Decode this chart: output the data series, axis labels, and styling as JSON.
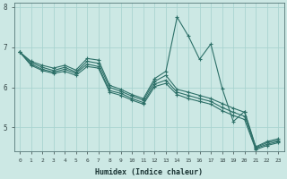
{
  "xlabel": "Humidex (Indice chaleur)",
  "bg_color": "#cce8e4",
  "grid_color": "#aad4d0",
  "line_color": "#2d7068",
  "xlim": [
    -0.5,
    23.5
  ],
  "ylim": [
    4.4,
    8.1
  ],
  "yticks": [
    5,
    6,
    7,
    8
  ],
  "xticks": [
    0,
    1,
    2,
    3,
    4,
    5,
    6,
    7,
    8,
    9,
    10,
    11,
    12,
    13,
    14,
    15,
    16,
    17,
    18,
    19,
    20,
    21,
    22,
    23
  ],
  "lines": [
    [
      6.88,
      6.65,
      6.55,
      6.48,
      6.55,
      6.43,
      6.72,
      6.68,
      6.05,
      5.95,
      5.82,
      5.72,
      6.22,
      6.4,
      7.75,
      7.28,
      6.7,
      7.08,
      5.98,
      5.15,
      5.4,
      4.52,
      4.65,
      4.72
    ],
    [
      6.88,
      6.62,
      6.5,
      6.42,
      6.5,
      6.38,
      6.65,
      6.6,
      6.0,
      5.9,
      5.78,
      5.68,
      6.15,
      6.3,
      5.95,
      5.88,
      5.8,
      5.72,
      5.6,
      5.48,
      5.38,
      4.5,
      4.62,
      4.68
    ],
    [
      6.88,
      6.58,
      6.45,
      6.38,
      6.45,
      6.35,
      6.58,
      6.52,
      5.92,
      5.85,
      5.72,
      5.62,
      6.08,
      6.18,
      5.88,
      5.8,
      5.72,
      5.65,
      5.5,
      5.38,
      5.28,
      4.48,
      4.58,
      4.65
    ],
    [
      6.88,
      6.55,
      6.42,
      6.35,
      6.4,
      6.3,
      6.52,
      6.48,
      5.88,
      5.8,
      5.68,
      5.58,
      6.02,
      6.1,
      5.82,
      5.72,
      5.65,
      5.58,
      5.42,
      5.3,
      5.2,
      4.45,
      4.55,
      4.62
    ]
  ]
}
